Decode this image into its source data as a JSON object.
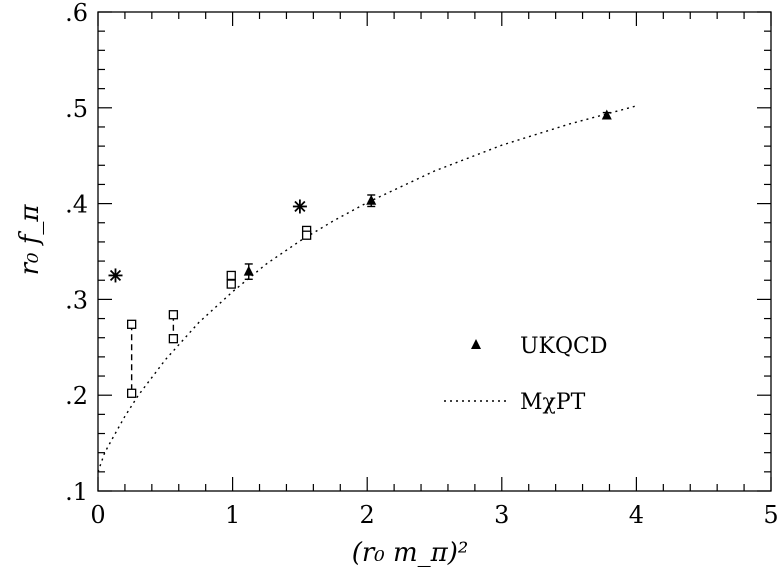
{
  "chart_data": {
    "type": "scatter",
    "xlabel": "(r₀ m_π)²",
    "ylabel": "r₀ f_π",
    "xlim": [
      0,
      5
    ],
    "ylim": [
      0.1,
      0.6
    ],
    "x_ticks": [
      0,
      1,
      2,
      3,
      4,
      5
    ],
    "x_tick_labels": [
      "0",
      "1",
      "2",
      "3",
      "4",
      "5"
    ],
    "y_ticks": [
      0.1,
      0.2,
      0.3,
      0.4,
      0.5,
      0.6
    ],
    "y_tick_labels": [
      ".1",
      ".2",
      ".3",
      ".4",
      ".5",
      ".6"
    ],
    "grid": false,
    "legend_position": "right-middle",
    "series": [
      {
        "name": "UKQCD",
        "marker": "filled-triangle",
        "points": [
          {
            "x": 1.12,
            "y": 0.329,
            "yerr": 0.008
          },
          {
            "x": 2.03,
            "y": 0.403,
            "yerr": 0.006
          },
          {
            "x": 3.78,
            "y": 0.492,
            "yerr": 0.003
          }
        ]
      },
      {
        "name": "MχPT",
        "style": "dotted-line",
        "curve": [
          [
            0.0,
            0.12
          ],
          [
            0.05,
            0.14
          ],
          [
            0.1,
            0.153
          ],
          [
            0.2,
            0.178
          ],
          [
            0.3,
            0.2
          ],
          [
            0.5,
            0.237
          ],
          [
            0.75,
            0.276
          ],
          [
            1.0,
            0.308
          ],
          [
            1.25,
            0.337
          ],
          [
            1.5,
            0.361
          ],
          [
            1.75,
            0.382
          ],
          [
            2.0,
            0.401
          ],
          [
            2.5,
            0.434
          ],
          [
            3.0,
            0.461
          ],
          [
            3.5,
            0.483
          ],
          [
            4.0,
            0.502
          ]
        ]
      },
      {
        "marker": "open-square",
        "points": [
          {
            "x": 0.25,
            "y": 0.274
          },
          {
            "x": 0.25,
            "y": 0.202
          },
          {
            "x": 0.56,
            "y": 0.284
          },
          {
            "x": 0.56,
            "y": 0.259
          },
          {
            "x": 0.99,
            "y": 0.325
          },
          {
            "x": 0.99,
            "y": 0.316
          },
          {
            "x": 1.55,
            "y": 0.372
          },
          {
            "x": 1.55,
            "y": 0.367
          }
        ],
        "dashed_connectors": [
          [
            0,
            1
          ],
          [
            2,
            3
          ]
        ]
      },
      {
        "marker": "asterisk",
        "points": [
          {
            "x": 0.13,
            "y": 0.325
          },
          {
            "x": 1.5,
            "y": 0.397
          }
        ]
      }
    ],
    "legend": [
      {
        "label": "UKQCD",
        "symbol": "filled-triangle"
      },
      {
        "label": "MχPT",
        "symbol": "dotted-line"
      }
    ]
  }
}
